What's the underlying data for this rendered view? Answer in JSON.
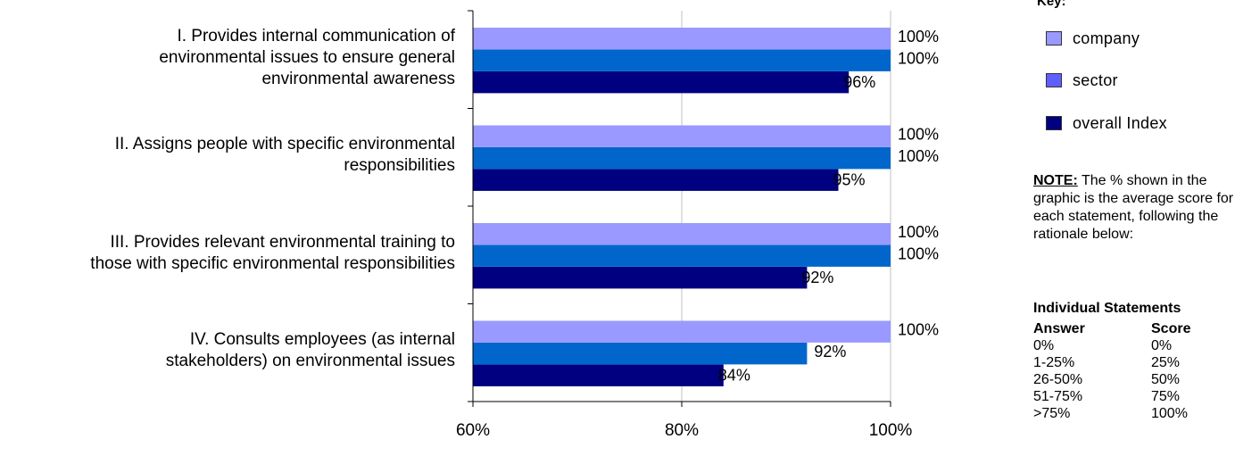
{
  "chart_data": {
    "type": "bar",
    "orientation": "horizontal",
    "categories": [
      [
        "I. Provides internal communication of",
        "environmental issues to ensure general",
        "environmental awareness"
      ],
      [
        "II. Assigns people with specific environmental",
        "responsibilities"
      ],
      [
        "III. Provides relevant environmental training to",
        "those with specific environmental responsibilities"
      ],
      [
        "IV. Consults employees (as internal",
        "stakeholders) on environmental issues"
      ]
    ],
    "series": [
      {
        "name": "company",
        "color": "#9999ff",
        "values": [
          100,
          100,
          100,
          100
        ],
        "labels": [
          "100%",
          "100%",
          "100%",
          "100%"
        ]
      },
      {
        "name": "sector",
        "color": "#0066cc",
        "values": [
          100,
          100,
          100,
          92
        ],
        "labels": [
          "100%",
          "100%",
          "100%",
          "92%"
        ]
      },
      {
        "name": "overall Index",
        "color": "#000080",
        "values": [
          96,
          95,
          92,
          84
        ],
        "labels": [
          "96%",
          "95%",
          "92%",
          "84%"
        ]
      }
    ],
    "xlim": [
      60,
      100
    ],
    "xticks": [
      60,
      80,
      100
    ],
    "xtick_labels": [
      "60%",
      "80%",
      "100%"
    ],
    "grid": true,
    "legend_position": "right"
  },
  "legend": {
    "title": "Key:",
    "items": [
      "company",
      "sector",
      "overall Index"
    ]
  },
  "note": {
    "label": "NOTE:",
    "text": " The % shown in the graphic is the average score for each statement, following the rationale below:"
  },
  "score_table": {
    "title": "Individual Statements",
    "headers": [
      "Answer",
      "Score"
    ],
    "rows": [
      [
        "0%",
        "0%"
      ],
      [
        "1-25%",
        "25%"
      ],
      [
        "26-50%",
        "50%"
      ],
      [
        "51-75%",
        "75%"
      ],
      [
        ">75%",
        "100%"
      ]
    ]
  }
}
